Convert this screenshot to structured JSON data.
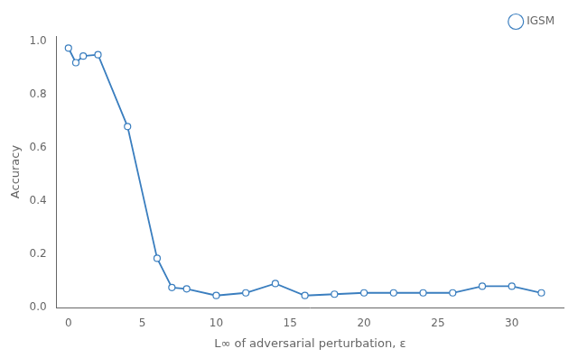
{
  "chart_data": {
    "type": "line",
    "xlabel": "L∞ of adversarial perturbation, ε",
    "ylabel": "Accuracy",
    "x": [
      0,
      0.5,
      1,
      2,
      4,
      6,
      7,
      8,
      10,
      12,
      14,
      16,
      18,
      20,
      22,
      24,
      26,
      28,
      30,
      32
    ],
    "series": [
      {
        "name": "IGSM",
        "color": "#3a7ebf",
        "marker": "o",
        "values": [
          0.975,
          0.92,
          0.945,
          0.95,
          0.68,
          0.185,
          0.075,
          0.07,
          0.045,
          0.055,
          0.09,
          0.045,
          0.05,
          0.055,
          0.055,
          0.055,
          0.055,
          0.08,
          0.08,
          0.055
        ]
      }
    ],
    "xlim": [
      -0.8,
      33.5
    ],
    "xticks": [
      0,
      5,
      10,
      15,
      20,
      25,
      30
    ],
    "ylim": [
      0.0,
      1.02
    ],
    "yticks": [
      {
        "value": 0.0,
        "label": "0.0"
      },
      0.2,
      0.4,
      0.6,
      0.8,
      {
        "value": 1.0,
        "label": "1.0"
      }
    ],
    "grid": false,
    "legend": "upper right"
  }
}
